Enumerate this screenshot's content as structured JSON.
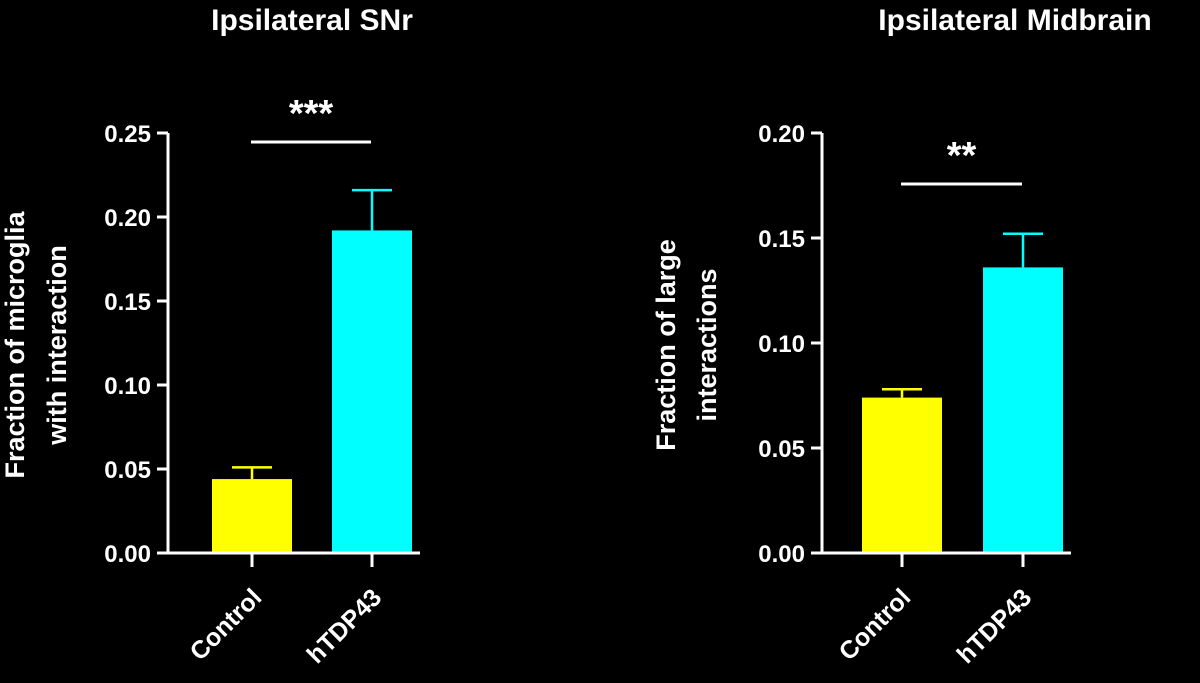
{
  "chart_data": [
    {
      "type": "bar",
      "title": "Ipsilateral SNr",
      "ylabel": [
        "Fraction of microglia",
        "with interaction"
      ],
      "categories": [
        "Control",
        "hTDP43"
      ],
      "values": [
        0.044,
        0.192
      ],
      "errors": [
        0.007,
        0.024
      ],
      "colors": [
        "#FFFF00",
        "#00FFFF"
      ],
      "ylim": [
        0,
        0.25
      ],
      "yticks": [
        "0.00",
        "0.05",
        "0.10",
        "0.15",
        "0.20",
        "0.25"
      ],
      "ytick_values": [
        0,
        0.05,
        0.1,
        0.15,
        0.2,
        0.25
      ],
      "significance": "***"
    },
    {
      "type": "bar",
      "title": "Ipsilateral Midbrain",
      "ylabel": [
        "Fraction of large",
        "interactions"
      ],
      "categories": [
        "Control",
        "hTDP43"
      ],
      "values": [
        0.074,
        0.136
      ],
      "errors": [
        0.004,
        0.016
      ],
      "colors": [
        "#FFFF00",
        "#00FFFF"
      ],
      "ylim": [
        0,
        0.2
      ],
      "yticks": [
        "0.00",
        "0.05",
        "0.10",
        "0.15",
        "0.20"
      ],
      "ytick_values": [
        0,
        0.05,
        0.1,
        0.15,
        0.2
      ],
      "significance": "**"
    }
  ]
}
